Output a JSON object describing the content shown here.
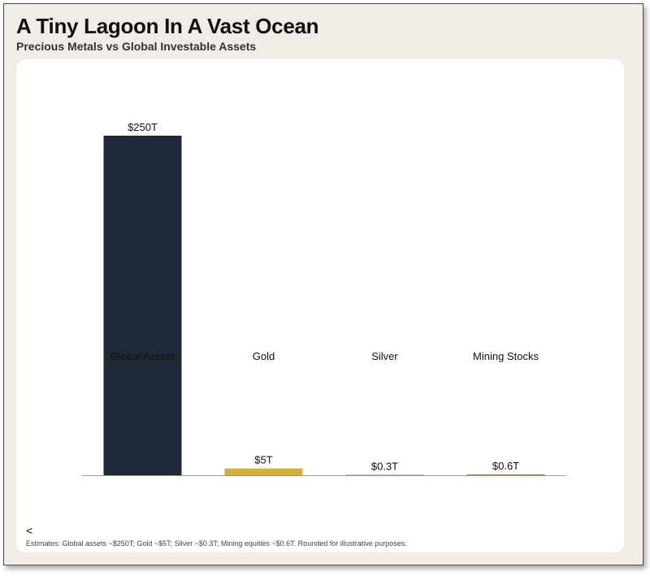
{
  "title": "A Tiny Lagoon In A Vast Ocean",
  "subtitle": "Precious Metals vs Global Investable Assets",
  "back_glyph": "<",
  "footnote": "Estimates: Global assets ~$250T; Gold ~$5T; Silver ~$0.3T; Mining equities ~$0.6T. Rounded for illustrative purposes.",
  "colors": {
    "frame_bg": "#f1ede6",
    "card_bg": "#ffffff",
    "global_assets": "#1f2937",
    "gold": "#d4af37",
    "silver": "#b8b8b8",
    "mining_stocks": "#c2691e",
    "baseline": "#999999"
  },
  "chart_data": {
    "type": "bar",
    "categories": [
      "Global Assets",
      "Gold",
      "Silver",
      "Mining Stocks"
    ],
    "values": [
      250,
      5,
      0.3,
      0.6
    ],
    "data_labels": [
      "$250T",
      "$5T",
      "$0.3T",
      "$0.6T"
    ],
    "bar_colors": [
      "#1f2937",
      "#d4af37",
      "#b8b8b8",
      "#c2691e"
    ],
    "ylim": [
      0,
      250
    ],
    "xlabel": "",
    "ylabel": "",
    "grid": false,
    "legend": "none"
  }
}
